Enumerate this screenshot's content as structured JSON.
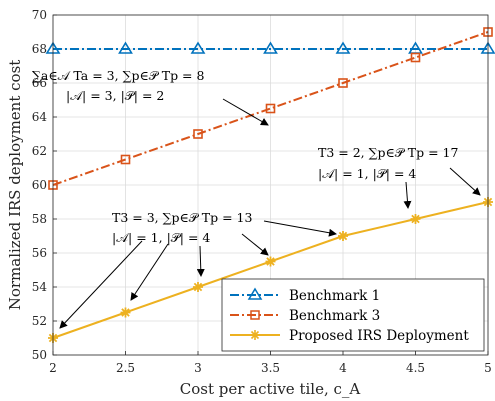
{
  "chart_data": {
    "type": "line",
    "xlabel": "Cost per active tile, c_A",
    "ylabel": "Normalized IRS deployment cost",
    "xlim": [
      2,
      5
    ],
    "ylim": [
      50,
      70
    ],
    "xticks": [
      "2",
      "2.5",
      "3",
      "3.5",
      "4",
      "4.5",
      "5"
    ],
    "yticks": [
      "50",
      "52",
      "54",
      "56",
      "58",
      "60",
      "62",
      "64",
      "66",
      "68",
      "70"
    ],
    "grid": true,
    "legend_position": "bottom-right",
    "x": [
      2,
      2.5,
      3,
      3.5,
      4,
      4.5,
      5
    ],
    "series": [
      {
        "name": "Benchmark 1",
        "values": [
          68,
          68,
          68,
          68,
          68,
          68,
          68
        ],
        "color": "#0072BD",
        "marker": "triangle",
        "linestyle": "dash-dot"
      },
      {
        "name": "Benchmark 3",
        "values": [
          60,
          61.5,
          63,
          64.5,
          66,
          67.5,
          69
        ],
        "color": "#D95319",
        "marker": "square",
        "linestyle": "dash-dot"
      },
      {
        "name": "Proposed IRS Deployment",
        "values": [
          51,
          52.5,
          54,
          55.5,
          57,
          58,
          59
        ],
        "color": "#EDB120",
        "marker": "asterisk",
        "linestyle": "solid"
      }
    ],
    "annotations": [
      {
        "lines": [
          "∑a∈𝒜 Ta = 3, ∑p∈𝒫 Tp = 8",
          "|𝒜| = 3, |𝒫| = 2"
        ]
      },
      {
        "lines": [
          "T3 = 3, ∑p∈𝒫 Tp = 13",
          "|𝒜| = 1, |𝒫| = 4"
        ]
      },
      {
        "lines": [
          "T3 = 2, ∑p∈𝒫 Tp = 17",
          "|𝒜| = 1, |𝒫| = 4"
        ]
      }
    ]
  }
}
